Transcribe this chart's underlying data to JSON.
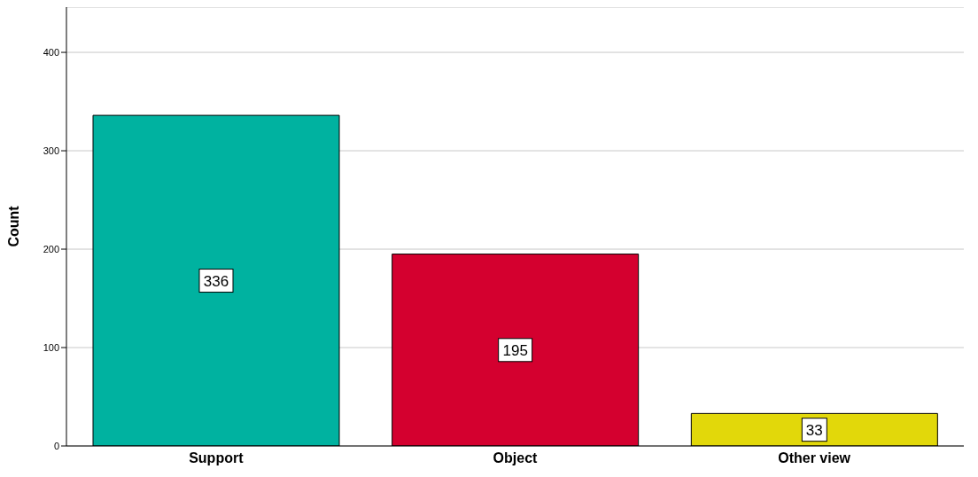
{
  "chart_data": {
    "type": "bar",
    "ylabel": "Count",
    "categories": [
      "Support",
      "Object",
      "Other view"
    ],
    "values": [
      336,
      195,
      33
    ],
    "colors": [
      "#00b2a0",
      "#d4002f",
      "#e2d80a"
    ],
    "ylim": [
      0,
      446
    ],
    "yticks": [
      0,
      100,
      200,
      300,
      400
    ],
    "grid": "y",
    "data_labels": true
  }
}
